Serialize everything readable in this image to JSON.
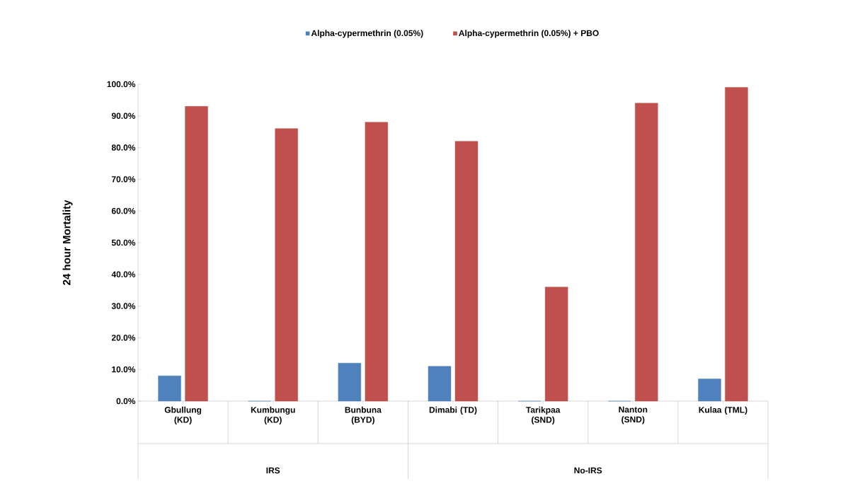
{
  "chart_data": {
    "type": "bar",
    "ylabel": "24 hour Mortality",
    "categories": [
      "Gbullung (KD)",
      "Kumbungu (KD)",
      "Bunbuna (BYD)",
      "Dimabi (TD)",
      "Tarikpaa (SND)",
      "Nanton (SND)",
      "Kulaa (TML)"
    ],
    "series": [
      {
        "name": "Alpha-cypermethrin (0.05%)",
        "color": "#4f81bd",
        "values": [
          8,
          0,
          12,
          11,
          0,
          0,
          7
        ]
      },
      {
        "name": "Alpha-cypermethrin (0.05%) + PBO",
        "color": "#c0504d",
        "values": [
          93,
          86,
          88,
          82,
          36,
          94,
          99
        ]
      }
    ],
    "ylim": [
      0,
      100
    ],
    "yticks": [
      {
        "value": 0,
        "label": "0.0%"
      },
      {
        "value": 10,
        "label": "10.0%"
      },
      {
        "value": 20,
        "label": "20.0%"
      },
      {
        "value": 30,
        "label": "30.0%"
      },
      {
        "value": 40,
        "label": "40.0%"
      },
      {
        "value": 50,
        "label": "50.0%"
      },
      {
        "value": 60,
        "label": "60.0%"
      },
      {
        "value": 70,
        "label": "70.0%"
      },
      {
        "value": 80,
        "label": "80.0%"
      },
      {
        "value": 90,
        "label": "90.0%"
      },
      {
        "value": 100,
        "label": "100.0%"
      }
    ],
    "annotations": [
      "IRS",
      "No-IRS"
    ],
    "legend": "top"
  }
}
